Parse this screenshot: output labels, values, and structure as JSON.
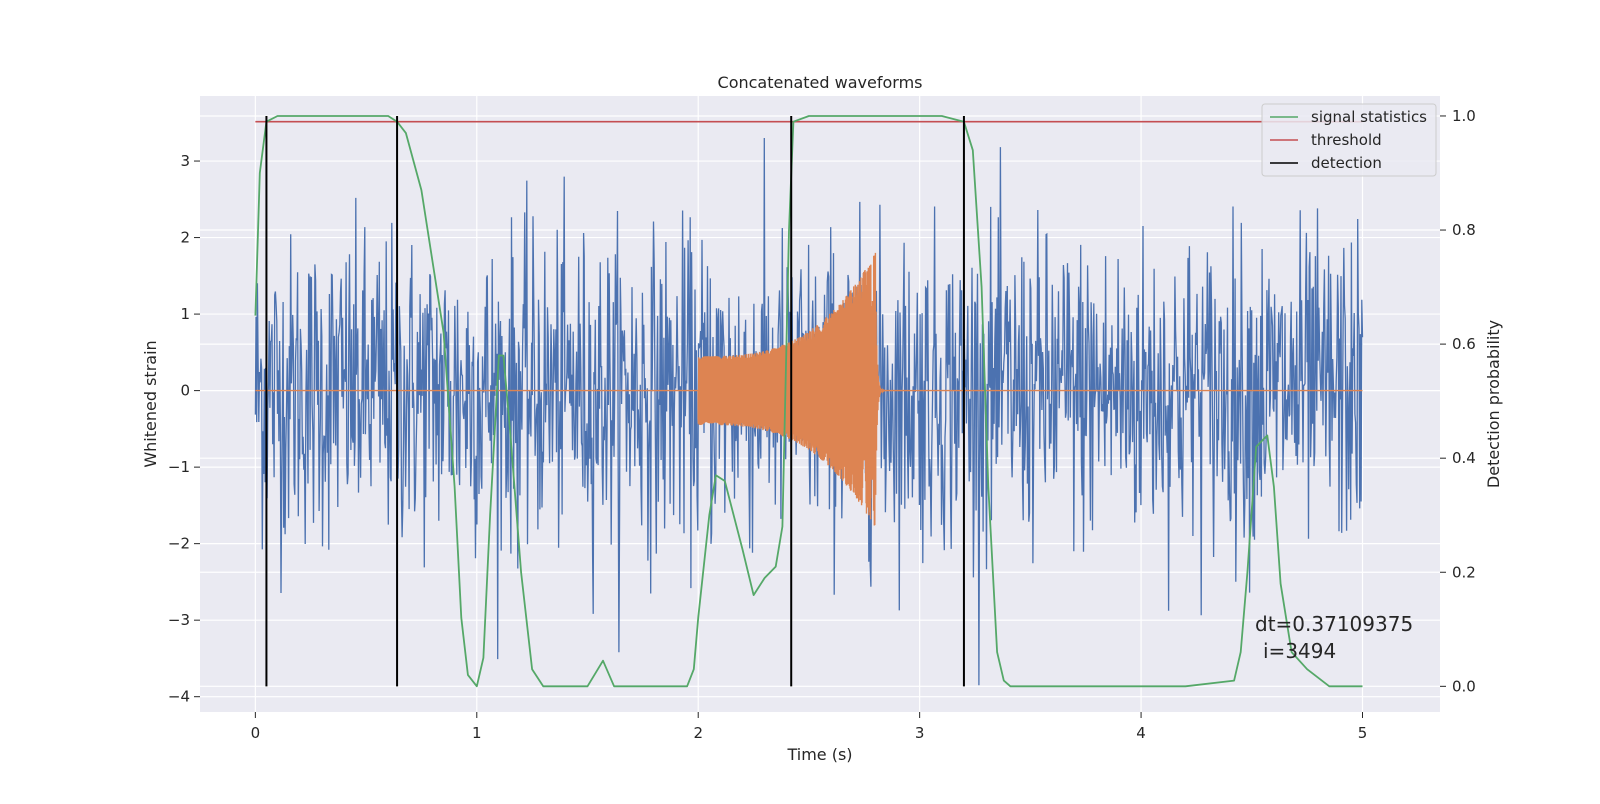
{
  "chart_data": {
    "type": "line",
    "title": "Concatenated waveforms",
    "xlabel": "Time (s)",
    "ylabel_left": "Whitened strain",
    "ylabel_right": "Detection probability",
    "xlim": [
      -0.25,
      5.35
    ],
    "ylim_left": [
      -4.2,
      3.85
    ],
    "ylim_right": [
      -0.045,
      1.035
    ],
    "x_ticks": [
      0,
      1,
      2,
      3,
      4,
      5
    ],
    "y_ticks_left": [
      -4,
      -3,
      -2,
      -1,
      0,
      1,
      2,
      3
    ],
    "y_ticks_right": [
      0.0,
      0.2,
      0.4,
      0.6,
      0.8,
      1.0
    ],
    "x_tick_labels": [
      "0",
      "1",
      "2",
      "3",
      "4",
      "5"
    ],
    "y_tick_labels_left": [
      "−4",
      "−3",
      "−2",
      "−1",
      "0",
      "1",
      "2",
      "3"
    ],
    "y_tick_labels_right": [
      "0.0",
      "0.2",
      "0.4",
      "0.6",
      "0.8",
      "1.0"
    ],
    "grid": true,
    "legend_position": "top-right",
    "legend": [
      "signal statistics",
      "threshold",
      "detection"
    ],
    "colors": {
      "strain": "#4c72b0",
      "injected_signal": "#dd8452",
      "signal_statistics": "#55a868",
      "threshold": "#c44e52",
      "detection": "#000000",
      "background": "#eaeaf2",
      "grid": "#ffffff"
    },
    "series": [
      {
        "axis": "left",
        "noise_amplitude": 1.4,
        "x_range": [
          0,
          5
        ],
        "values": []
      },
      {
        "axis": "left",
        "chirp": {
          "start": 2.0,
          "merger": 2.8,
          "amplitude_start": 0.45,
          "amplitude_peak": 1.8
        }
      },
      {
        "name": "signal statistics",
        "axis": "right",
        "x": [
          0.0,
          0.02,
          0.05,
          0.1,
          0.3,
          0.6,
          0.64,
          0.68,
          0.75,
          0.85,
          0.9,
          0.93,
          0.96,
          1.0,
          1.03,
          1.06,
          1.1,
          1.12,
          1.15,
          1.2,
          1.25,
          1.3,
          1.4,
          1.5,
          1.57,
          1.62,
          1.7,
          1.8,
          1.95,
          1.98,
          2.0,
          2.05,
          2.08,
          2.12,
          2.2,
          2.25,
          2.3,
          2.35,
          2.38,
          2.41,
          2.43,
          2.5,
          2.7,
          3.1,
          3.2,
          3.24,
          3.28,
          3.31,
          3.35,
          3.38,
          3.41,
          3.5,
          3.8,
          4.2,
          4.42,
          4.45,
          4.48,
          4.52,
          4.57,
          4.6,
          4.63,
          4.68,
          4.75,
          4.85,
          4.95,
          5.0
        ],
        "values": [
          0.65,
          0.9,
          0.99,
          1.0,
          1.0,
          1.0,
          0.99,
          0.97,
          0.87,
          0.62,
          0.35,
          0.12,
          0.02,
          0.0,
          0.05,
          0.3,
          0.58,
          0.58,
          0.45,
          0.2,
          0.03,
          0.0,
          0.0,
          0.0,
          0.045,
          0.0,
          0.0,
          0.0,
          0.0,
          0.03,
          0.12,
          0.3,
          0.37,
          0.36,
          0.24,
          0.16,
          0.19,
          0.21,
          0.28,
          0.8,
          0.99,
          1.0,
          1.0,
          1.0,
          0.99,
          0.94,
          0.7,
          0.35,
          0.06,
          0.01,
          0.0,
          0.0,
          0.0,
          0.0,
          0.01,
          0.06,
          0.2,
          0.42,
          0.44,
          0.35,
          0.18,
          0.06,
          0.03,
          0.0,
          0.0,
          0.0
        ]
      },
      {
        "name": "threshold",
        "axis": "right",
        "x": [
          0,
          5
        ],
        "values": [
          0.99,
          0.99
        ]
      },
      {
        "name": "detection",
        "axis": "right",
        "x": [
          0.05,
          0.64,
          2.42,
          3.2
        ],
        "y_range": [
          0,
          1.0
        ]
      }
    ],
    "annotations": [
      "dt=0.37109375",
      "i=3494"
    ]
  }
}
